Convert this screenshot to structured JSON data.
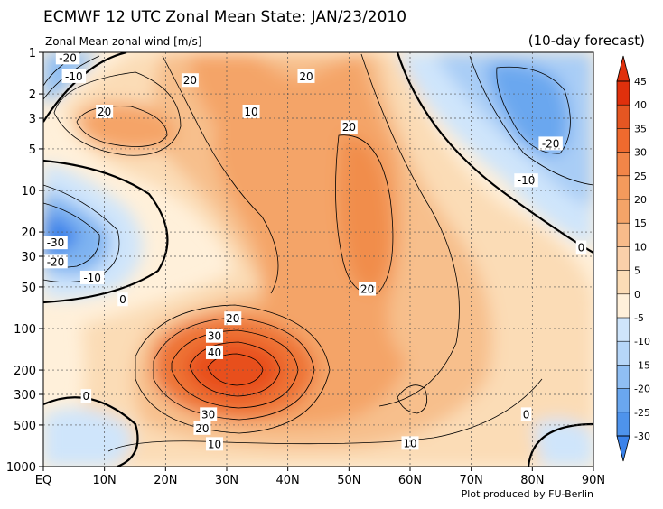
{
  "title": "ECMWF 12 UTC Zonal Mean State: JAN/23/2010",
  "subtitle_left": "Zonal Mean zonal wind [m/s]",
  "subtitle_right": "(10-day forecast)",
  "credit": "Plot produced by FU-Berlin",
  "chart_data": {
    "type": "heatmap",
    "title": "ECMWF 12 UTC Zonal Mean State: JAN/23/2010",
    "variable": "Zonal Mean zonal wind [m/s]",
    "x": {
      "ticks": [
        "EQ",
        "10N",
        "20N",
        "30N",
        "40N",
        "50N",
        "60N",
        "70N",
        "80N",
        "90N"
      ],
      "range": [
        0,
        90
      ]
    },
    "y": {
      "scale": "log",
      "reversed": true,
      "ticks": [
        1,
        2,
        3,
        5,
        10,
        20,
        30,
        50,
        100,
        200,
        300,
        500,
        1000
      ],
      "range": [
        1,
        1000
      ]
    },
    "grid": true,
    "contour_interval": 5,
    "contour_labels": [
      {
        "lat": 4,
        "p": 1.1,
        "text": "-20"
      },
      {
        "lat": 5,
        "p": 1.5,
        "text": "-10"
      },
      {
        "lat": 24,
        "p": 1.6,
        "text": "20"
      },
      {
        "lat": 43,
        "p": 1.5,
        "text": "20"
      },
      {
        "lat": 10,
        "p": 2.7,
        "text": "20"
      },
      {
        "lat": 34,
        "p": 2.7,
        "text": "10"
      },
      {
        "lat": 50,
        "p": 3.5,
        "text": "20"
      },
      {
        "lat": 83,
        "p": 4.6,
        "text": "-20"
      },
      {
        "lat": 79,
        "p": 8.5,
        "text": "-10"
      },
      {
        "lat": 2,
        "p": 24,
        "text": "-30"
      },
      {
        "lat": 2,
        "p": 33,
        "text": "-20"
      },
      {
        "lat": 8,
        "p": 43,
        "text": "-10"
      },
      {
        "lat": 13,
        "p": 62,
        "text": "0"
      },
      {
        "lat": 88,
        "p": 26,
        "text": "0"
      },
      {
        "lat": 53,
        "p": 52,
        "text": "20"
      },
      {
        "lat": 31,
        "p": 85,
        "text": "20"
      },
      {
        "lat": 28,
        "p": 114,
        "text": "30"
      },
      {
        "lat": 28,
        "p": 150,
        "text": "40"
      },
      {
        "lat": 7,
        "p": 310,
        "text": "0"
      },
      {
        "lat": 27,
        "p": 420,
        "text": "30"
      },
      {
        "lat": 26,
        "p": 530,
        "text": "20"
      },
      {
        "lat": 28,
        "p": 690,
        "text": "10"
      },
      {
        "lat": 60,
        "p": 680,
        "text": "10"
      },
      {
        "lat": 79,
        "p": 420,
        "text": "0"
      }
    ],
    "colorbar": {
      "ticks": [
        45,
        40,
        35,
        30,
        25,
        20,
        15,
        10,
        5,
        0,
        -5,
        -10,
        -15,
        -20,
        -25,
        -30
      ],
      "colors": {
        "max": "#e0300c",
        "high": "#ef6a2e",
        "mid_high": "#f5a468",
        "low_pos": "#fbdcb6",
        "zero": "#fff0da",
        "low_neg": "#cfe5fb",
        "mid_neg": "#8fbef3",
        "min": "#3a82ea"
      }
    }
  }
}
